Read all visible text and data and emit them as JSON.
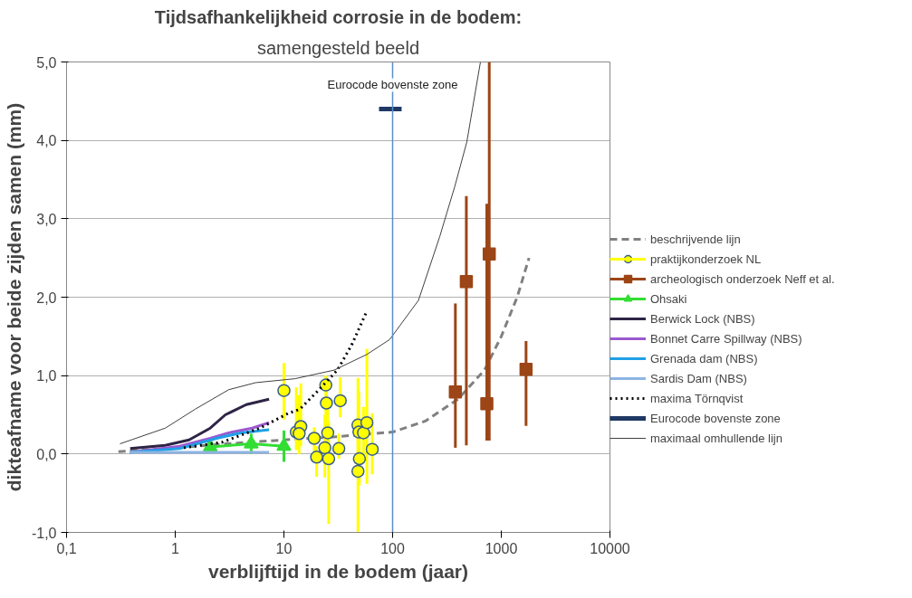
{
  "chart_data": {
    "type": "line",
    "title": "Tijdsafhankelijkheid corrosie in de bodem:",
    "subtitle": "samengesteld beeld",
    "xlabel": "verblijftijd in de bodem (jaar)",
    "ylabel": "dikteafname voor beide zijden samen (mm)",
    "log": "x",
    "xlim": [
      0.1,
      10000
    ],
    "xticks": [
      {
        "value": 0.1,
        "label": "0,1"
      },
      1,
      10,
      100,
      1000,
      10000
    ],
    "ylim": [
      -1,
      5
    ],
    "yticks": [
      {
        "value": -1,
        "label": "-1,0"
      },
      {
        "value": 0,
        "label": "0,0"
      },
      {
        "value": 1,
        "label": "1,0"
      },
      {
        "value": 2,
        "label": "2,0"
      },
      {
        "value": 3,
        "label": "3,0"
      },
      {
        "value": 4,
        "label": "4,0"
      },
      {
        "value": 5,
        "label": "5,0"
      }
    ],
    "grid": "y",
    "legend": "right",
    "ref_lines": [
      {
        "axis": "x",
        "value": 100,
        "color": "#5b8ec9"
      }
    ],
    "annotations": [
      {
        "text": "Eurocode bovenste zone",
        "x": 100,
        "y": 4.62
      }
    ],
    "series": [
      {
        "name": "beschrijvende lijn",
        "line_style": "dashed",
        "color": "#808080",
        "x": [
          0.3,
          1,
          3,
          10,
          30,
          100,
          200,
          400,
          700,
          1000,
          1400,
          1800
        ],
        "values": [
          0.03,
          0.08,
          0.13,
          0.18,
          0.22,
          0.28,
          0.42,
          0.7,
          1.07,
          1.5,
          2.0,
          2.5
        ]
      },
      {
        "name": "praktijkonderzoek NL",
        "type": "scatter",
        "marker": "circle",
        "color": "#ffff00",
        "x": [
          10,
          13,
          14.3,
          13.8,
          19,
          20,
          23.8,
          24.3,
          24.6,
          25.3,
          25.8,
          33,
          32,
          48,
          49,
          49.5,
          48,
          54,
          58,
          65
        ],
        "values": [
          0.81,
          0.28,
          0.35,
          0.26,
          0.2,
          -0.04,
          0.08,
          0.88,
          0.65,
          0.27,
          -0.06,
          0.68,
          0.07,
          0.37,
          0.28,
          -0.06,
          -0.22,
          0.27,
          0.4,
          0.06
        ],
        "errors": [
          [
            0.44,
            1.16
          ],
          [
            0.05,
            0.85
          ],
          [
            0.1,
            0.9
          ],
          [
            0.0,
            0.75
          ],
          [
            -0.05,
            0.34
          ],
          [
            -0.29,
            0.1
          ],
          [
            -0.3,
            0.5
          ],
          [
            0.5,
            1.0
          ],
          [
            0.3,
            0.95
          ],
          [
            -0.1,
            0.6
          ],
          [
            -0.89,
            0.41
          ],
          [
            0.47,
            0.98
          ],
          [
            -0.06,
            0.26
          ],
          [
            -0.2,
            0.97
          ],
          [
            -0.3,
            0.8
          ],
          [
            -0.4,
            0.3
          ],
          [
            -0.99,
            0.3
          ],
          [
            -0.1,
            0.6
          ],
          [
            -0.38,
            1.34
          ],
          [
            -0.26,
            0.52
          ]
        ]
      },
      {
        "name": "archeologisch onderzoek Neff et al.",
        "type": "scatter",
        "marker": "square",
        "color": "#9c4516",
        "x": [
          378,
          477,
          736,
          775,
          1690
        ],
        "values": [
          0.79,
          2.2,
          0.64,
          2.55,
          1.08
        ],
        "errors": [
          [
            0.08,
            1.92
          ],
          [
            0.11,
            3.29
          ],
          [
            0.17,
            3.19
          ],
          [
            0.17,
            5.0
          ],
          [
            0.36,
            1.44
          ]
        ]
      },
      {
        "name": "Ohsaki",
        "marker": "triangle",
        "color": "#33dd33",
        "x": [
          2.1,
          5,
          10
        ],
        "values": [
          0.09,
          0.13,
          0.1
        ],
        "errors": [
          null,
          0.13,
          0.2
        ]
      },
      {
        "name": "Berwick Lock (NBS)",
        "color": "#2e2445",
        "x": [
          0.385,
          0.81,
          1.34,
          2.1,
          2.89,
          4.5,
          7.3
        ],
        "values": [
          0.07,
          0.11,
          0.18,
          0.33,
          0.5,
          0.63,
          0.7
        ]
      },
      {
        "name": "Bonnet Carre Spillway (NBS)",
        "color": "#9b59d0",
        "x": [
          0.38,
          1.1,
          2.1,
          3.1,
          5.1,
          7.3
        ],
        "values": [
          0.02,
          0.1,
          0.2,
          0.27,
          0.33,
          0.4
        ]
      },
      {
        "name": "Grenada dam (NBS)",
        "color": "#1fa0e6",
        "x": [
          0.38,
          1.1,
          2.4,
          4.0,
          7.3
        ],
        "values": [
          0.02,
          0.07,
          0.2,
          0.27,
          0.31
        ]
      },
      {
        "name": "Sardis Dam (NBS)",
        "color": "#8db4e2",
        "x": [
          0.38,
          7.3
        ],
        "values": [
          0.02,
          0.02
        ]
      },
      {
        "name": "maxima Törnqvist",
        "line_style": "dotted",
        "color": "#000000",
        "x": [
          1.2,
          2.7,
          6,
          11,
          14,
          21,
          31,
          42,
          57
        ],
        "values": [
          0.08,
          0.15,
          0.33,
          0.52,
          0.57,
          0.82,
          1.07,
          1.39,
          1.8
        ]
      },
      {
        "name": "Eurocode bovenste zone",
        "color": "#1f3864",
        "x": [
          75,
          121
        ],
        "values": [
          4.4,
          4.4
        ]
      },
      {
        "name": "maximaal omhullende lijn",
        "color": "#404040",
        "x": [
          0.31,
          0.81,
          1.52,
          3.1,
          5.5,
          12.6,
          29,
          58,
          94,
          173,
          271,
          373,
          482,
          643
        ],
        "values": [
          0.13,
          0.33,
          0.57,
          0.82,
          0.91,
          0.96,
          1.07,
          1.27,
          1.46,
          1.96,
          2.77,
          3.41,
          3.98,
          5.0
        ]
      }
    ]
  }
}
